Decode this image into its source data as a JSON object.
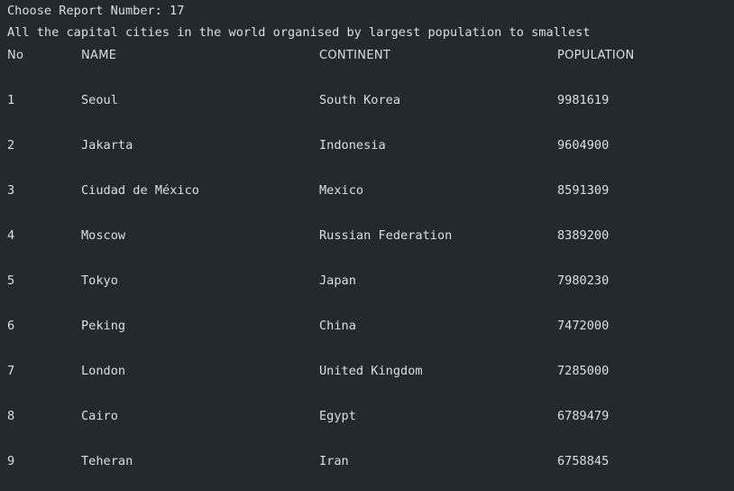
{
  "prompt": "Choose Report Number: 17",
  "report_title": "All the capital cities in the world organised by largest population to smallest",
  "table": {
    "headers": [
      "No",
      "NAME",
      "CONTINENT",
      "POPULATION"
    ],
    "rows": [
      [
        "1",
        "Seoul",
        "South Korea",
        "9981619"
      ],
      [
        "2",
        "Jakarta",
        "Indonesia",
        "9604900"
      ],
      [
        "3",
        "Ciudad de México",
        "Mexico",
        "8591309"
      ],
      [
        "4",
        "Moscow",
        "Russian Federation",
        "8389200"
      ],
      [
        "5",
        "Tokyo",
        "Japan",
        "7980230"
      ],
      [
        "6",
        "Peking",
        "China",
        "7472000"
      ],
      [
        "7",
        "London",
        "United Kingdom",
        "7285000"
      ],
      [
        "8",
        "Cairo",
        "Egypt",
        "6789479"
      ],
      [
        "9",
        "Teheran",
        "Iran",
        "6758845"
      ]
    ]
  },
  "colors": {
    "background": "#24282f",
    "text": "#dcdfe4"
  }
}
